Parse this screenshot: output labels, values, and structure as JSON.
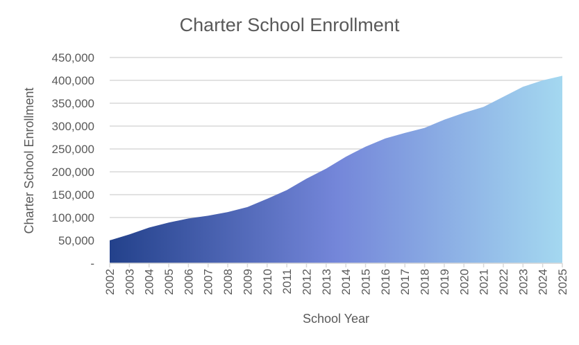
{
  "chart_data": {
    "type": "area",
    "title": "Charter School Enrollment",
    "xlabel": "School Year",
    "ylabel": "Charter School Enrollment",
    "ylim": [
      0,
      450000
    ],
    "yticks": [
      0,
      50000,
      100000,
      150000,
      200000,
      250000,
      300000,
      350000,
      400000,
      450000
    ],
    "ytick_labels": [
      "-",
      "50,000",
      "100,000",
      "150,000",
      "200,000",
      "250,000",
      "300,000",
      "350,000",
      "400,000",
      "450,000"
    ],
    "grid": true,
    "legend": "none",
    "x": [
      "2002",
      "2003",
      "2004",
      "2005",
      "2006",
      "2007",
      "2008",
      "2009",
      "2010",
      "2011",
      "2012",
      "2013",
      "2014",
      "2015",
      "2016",
      "2017",
      "2018",
      "2019",
      "2020",
      "2021",
      "2022",
      "2023",
      "2024",
      "2025"
    ],
    "values": [
      50000,
      63000,
      78000,
      89000,
      98000,
      104000,
      112000,
      123000,
      141000,
      160000,
      185000,
      207000,
      233000,
      255000,
      273000,
      285000,
      296000,
      314000,
      329000,
      342000,
      364000,
      386000,
      400000,
      410000
    ],
    "gradient": [
      "#23418b",
      "#7486d9",
      "#a4d8f0"
    ]
  }
}
